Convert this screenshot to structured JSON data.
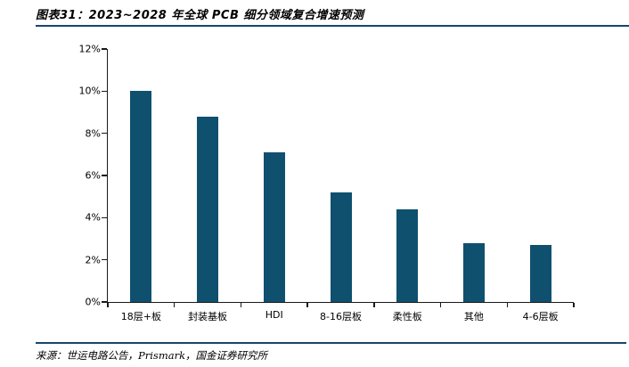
{
  "page": {
    "title": "图表31：2023~2028 年全球 PCB 细分领域复合增速预测",
    "source_note": "来源：世运电路公告，Prismark，国金证券研究所",
    "accent_rule_color": "#17466E"
  },
  "chart_data": {
    "type": "bar",
    "title": "2023~2028 年全球 PCB 细分领域复合增速预测",
    "categories": [
      "18层+板",
      "封装基板",
      "HDI",
      "8-16层板",
      "柔性板",
      "其他",
      "4-6层板"
    ],
    "values": [
      10.0,
      8.8,
      7.1,
      5.2,
      4.4,
      2.8,
      2.7
    ],
    "unit": "%",
    "xlabel": "",
    "ylabel": "",
    "ylim": [
      0,
      12
    ],
    "ytick_step": 2,
    "ytick_labels": [
      "0%",
      "2%",
      "4%",
      "6%",
      "8%",
      "10%",
      "12%"
    ],
    "bar_color": "#0F506F",
    "grid": false,
    "legend": false
  }
}
